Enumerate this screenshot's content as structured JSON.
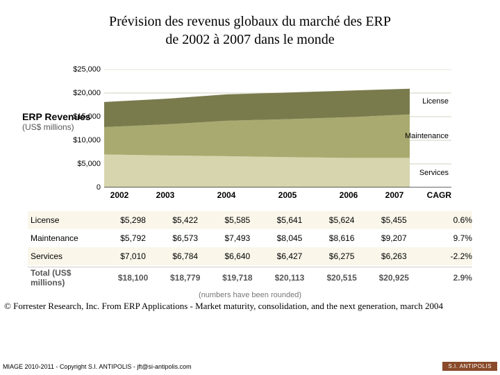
{
  "title_line1": "Prévision des revenus globaux du marché des ERP",
  "title_line2": "de 2002 à 2007 dans le monde",
  "ylabel_main": "ERP Revenues",
  "ylabel_sub": "(US$ millions)",
  "chart": {
    "type": "stacked-area",
    "ymin": 0,
    "ymax": 25000,
    "yticks": [
      {
        "v": 25000,
        "label": "$25,000"
      },
      {
        "v": 20000,
        "label": "$20,000"
      },
      {
        "v": 15000,
        "label": "$15,000"
      },
      {
        "v": 10000,
        "label": "$10,000"
      },
      {
        "v": 5000,
        "label": "$5,000"
      },
      {
        "v": 0,
        "label": "0"
      }
    ],
    "years": [
      "2002",
      "2003",
      "2004",
      "2005",
      "2006",
      "2007"
    ],
    "cagr_header": "CAGR",
    "series": [
      {
        "name": "Services",
        "color": "#d6d5ad",
        "values": [
          7010,
          6784,
          6640,
          6427,
          6275,
          6263
        ],
        "cagr": "-2.2%"
      },
      {
        "name": "Maintenance",
        "color": "#a9aa6f",
        "values": [
          5792,
          6573,
          7493,
          8045,
          8616,
          9207
        ],
        "cagr": "9.7%"
      },
      {
        "name": "License",
        "color": "#7a7b4d",
        "values": [
          5298,
          5422,
          5585,
          5641,
          5624,
          5455
        ],
        "cagr": "0.6%"
      }
    ],
    "grid_color": "#d0d0c0",
    "background": "#ffffff"
  },
  "table": {
    "rows": [
      {
        "label": "License",
        "values": [
          "$5,298",
          "$5,422",
          "$5,585",
          "$5,641",
          "$5,624",
          "$5,455",
          "0.6%"
        ],
        "alt": true
      },
      {
        "label": "Maintenance",
        "values": [
          "$5,792",
          "$6,573",
          "$7,493",
          "$8,045",
          "$8,616",
          "$9,207",
          "9.7%"
        ],
        "alt": false
      },
      {
        "label": "Services",
        "values": [
          "$7,010",
          "$6,784",
          "$6,640",
          "$6,427",
          "$6,275",
          "$6,263",
          "-2.2%"
        ],
        "alt": true
      }
    ],
    "total_label": "Total (US$ millions)",
    "total_values": [
      "$18,100",
      "$18,779",
      "$19,718",
      "$20,113",
      "$20,515",
      "$20,925",
      "2.9%"
    ]
  },
  "rounded_note": "(numbers have been rounded)",
  "credit": "© Forrester Research, Inc. From ERP Applications - Market maturity, consolidation, and the next generation, march 2004",
  "footer_left": "MIAGE 2010-2011 - Copyright S.I. ANTIPOLIS - jft@si-antipolis.com",
  "footer_badge": "S.I. ANTIPOLIS"
}
